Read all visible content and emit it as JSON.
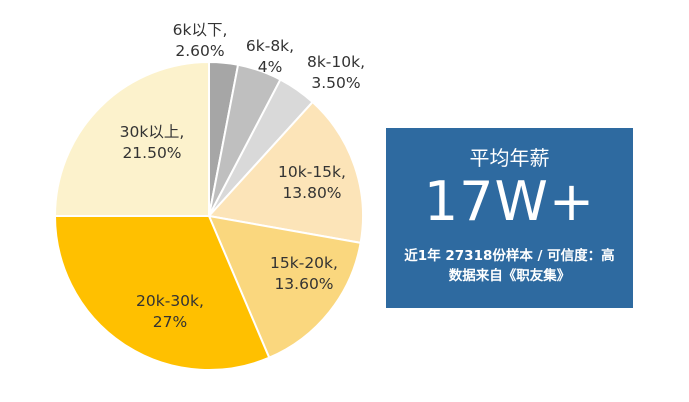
{
  "chart_data": {
    "type": "pie",
    "slices": [
      {
        "name": "6k以下",
        "value": 2.6,
        "label": "2.60%",
        "color": "#a6a6a6"
      },
      {
        "name": "6k-8k",
        "value": 4,
        "label": "4%",
        "color": "#bfbfbf"
      },
      {
        "name": "8k-10k",
        "value": 3.5,
        "label": "3.50%",
        "color": "#d9d9d9"
      },
      {
        "name": "10k-15k",
        "value": 13.8,
        "label": "13.80%",
        "color": "#fce4b8"
      },
      {
        "name": "15k-20k",
        "value": 13.6,
        "label": "13.60%",
        "color": "#fad77e"
      },
      {
        "name": "20k-30k",
        "value": 27,
        "label": "27%",
        "color": "#ffc000"
      },
      {
        "name": "30k以上",
        "value": 21.5,
        "label": "21.50%",
        "color": "#fcf2cc"
      }
    ]
  },
  "info": {
    "title": "平均年薪",
    "value": "17W+",
    "note_line1": "近1年 27318份样本 / 可信度：高",
    "note_line2": "数据来自《职友集》"
  }
}
